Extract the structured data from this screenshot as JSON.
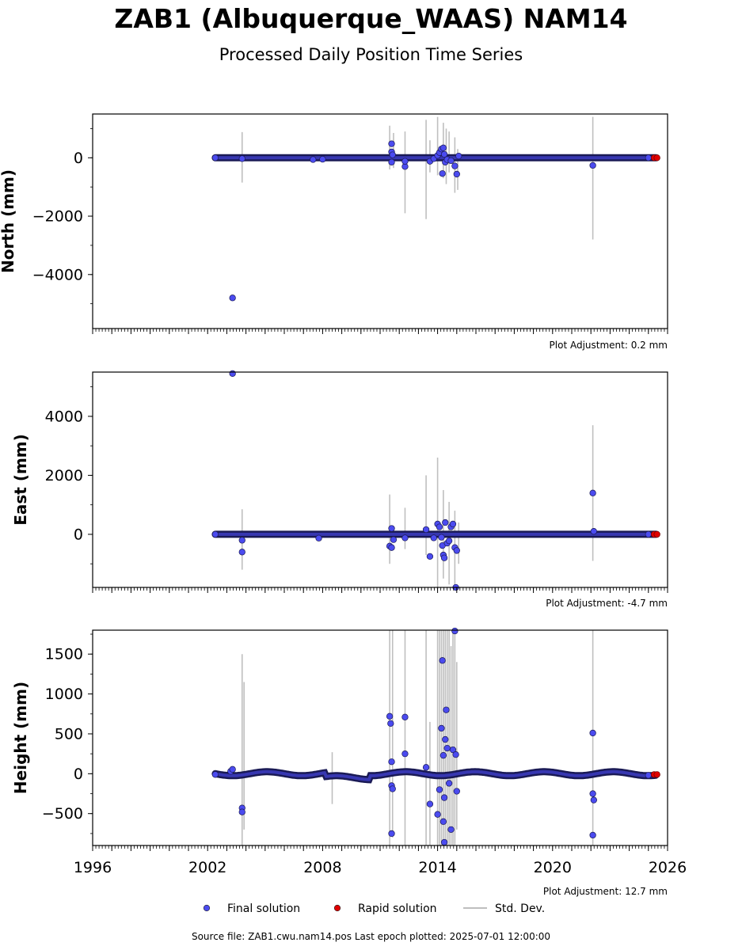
{
  "header": {
    "title": "ZAB1 (Albuquerque_WAAS) NAM14",
    "subtitle": "Processed Daily Position Time Series"
  },
  "footer": {
    "source_text": "Source file: ZAB1.cwu.nam14.pos  Last epoch plotted: 2025-07-01 12:00:00"
  },
  "colors": {
    "final": "#4b4bef",
    "final_edge": "#1a1a55",
    "rapid": "#e00000",
    "stddev": "#b4b4b4"
  },
  "chart_data": [
    {
      "type": "scatter",
      "ylabel": "North (mm)",
      "adjustment": "Plot Adjustment: 0.2 mm",
      "xlim": [
        1996,
        2026
      ],
      "ylim": [
        -5850,
        1500
      ],
      "yticks": [
        0,
        -2000,
        -4000
      ],
      "ytick_labels": [
        "0",
        "−2000",
        "−4000"
      ],
      "x_decimal_year": true,
      "band": {
        "x_start": 2002.4,
        "x_end": 2025.4,
        "y": 0
      },
      "series": [
        {
          "name": "Final solution",
          "points": [
            [
              2002.4,
              0
            ],
            [
              2003.3,
              -4800
            ],
            [
              2003.8,
              -30
            ],
            [
              2007.5,
              -60
            ],
            [
              2008.0,
              -50
            ],
            [
              2011.6,
              480
            ],
            [
              2011.6,
              200
            ],
            [
              2011.65,
              100
            ],
            [
              2011.6,
              -150
            ],
            [
              2012.3,
              -300
            ],
            [
              2012.3,
              -120
            ],
            [
              2013.6,
              -120
            ],
            [
              2013.8,
              -30
            ],
            [
              2014.0,
              80
            ],
            [
              2014.1,
              180
            ],
            [
              2014.2,
              300
            ],
            [
              2014.3,
              340
            ],
            [
              2014.35,
              120
            ],
            [
              2014.25,
              -540
            ],
            [
              2014.4,
              -150
            ],
            [
              2014.5,
              -60
            ],
            [
              2014.7,
              -100
            ],
            [
              2014.9,
              -280
            ],
            [
              2015.0,
              -560
            ],
            [
              2015.1,
              60
            ],
            [
              2022.1,
              -260
            ],
            [
              2025.0,
              0
            ]
          ]
        },
        {
          "name": "Rapid solution",
          "points": [
            [
              2025.3,
              0
            ],
            [
              2025.45,
              0
            ]
          ]
        }
      ],
      "stddev_bars": [
        [
          2003.8,
          -850,
          880
        ],
        [
          2011.5,
          -400,
          1100
        ],
        [
          2011.7,
          -350,
          850
        ],
        [
          2012.3,
          -1900,
          900
        ],
        [
          2013.4,
          -2100,
          1300
        ],
        [
          2013.6,
          -500,
          600
        ],
        [
          2014.0,
          -600,
          1400
        ],
        [
          2014.3,
          -700,
          1200
        ],
        [
          2014.45,
          -900,
          1000
        ],
        [
          2014.6,
          -500,
          900
        ],
        [
          2014.9,
          -1200,
          700
        ],
        [
          2015.05,
          -1100,
          300
        ],
        [
          2022.1,
          -2800,
          1400
        ]
      ]
    },
    {
      "type": "scatter",
      "ylabel": "East (mm)",
      "adjustment": "Plot Adjustment: -4.7 mm",
      "xlim": [
        1996,
        2026
      ],
      "ylim": [
        -1800,
        5500
      ],
      "yticks": [
        0,
        2000,
        4000
      ],
      "ytick_labels": [
        "0",
        "2000",
        "4000"
      ],
      "x_decimal_year": true,
      "band": {
        "x_start": 2002.4,
        "x_end": 2025.4,
        "y": 0
      },
      "series": [
        {
          "name": "Final solution",
          "points": [
            [
              2002.4,
              0
            ],
            [
              2003.3,
              5450
            ],
            [
              2003.8,
              -200
            ],
            [
              2003.8,
              -600
            ],
            [
              2007.8,
              -130
            ],
            [
              2011.5,
              -400
            ],
            [
              2011.6,
              -450
            ],
            [
              2011.6,
              200
            ],
            [
              2011.7,
              -180
            ],
            [
              2012.3,
              -120
            ],
            [
              2013.4,
              160
            ],
            [
              2013.6,
              -750
            ],
            [
              2013.8,
              -120
            ],
            [
              2014.0,
              350
            ],
            [
              2014.1,
              250
            ],
            [
              2014.2,
              -100
            ],
            [
              2014.25,
              -380
            ],
            [
              2014.3,
              -700
            ],
            [
              2014.35,
              -800
            ],
            [
              2014.4,
              400
            ],
            [
              2014.5,
              -300
            ],
            [
              2014.6,
              -220
            ],
            [
              2014.7,
              250
            ],
            [
              2014.8,
              350
            ],
            [
              2014.9,
              -450
            ],
            [
              2015.0,
              -550
            ],
            [
              2014.95,
              -1800
            ],
            [
              2022.1,
              1400
            ],
            [
              2022.15,
              100
            ],
            [
              2025.0,
              0
            ]
          ]
        },
        {
          "name": "Rapid solution",
          "points": [
            [
              2025.3,
              0
            ],
            [
              2025.45,
              0
            ]
          ]
        }
      ],
      "stddev_bars": [
        [
          2003.8,
          -1200,
          850
        ],
        [
          2011.5,
          -1000,
          1350
        ],
        [
          2012.3,
          -500,
          900
        ],
        [
          2013.4,
          -700,
          2000
        ],
        [
          2014.0,
          -1800,
          2600
        ],
        [
          2014.3,
          -1500,
          1500
        ],
        [
          2014.6,
          -1700,
          1100
        ],
        [
          2014.9,
          -1800,
          800
        ],
        [
          2015.1,
          -1000,
          400
        ],
        [
          2022.1,
          -900,
          3700
        ]
      ]
    },
    {
      "type": "scatter",
      "ylabel": "Height (mm)",
      "adjustment": "Plot Adjustment: 12.7 mm",
      "xlim": [
        1996,
        2026
      ],
      "ylim": [
        -900,
        1800
      ],
      "yticks": [
        1500,
        1000,
        500,
        0,
        -500
      ],
      "ytick_labels": [
        "1500",
        "1000",
        "500",
        "0",
        "−500"
      ],
      "xticks": [
        1996,
        2002,
        2008,
        2014,
        2020,
        2026
      ],
      "xtick_labels": [
        "1996",
        "2002",
        "2008",
        "2014",
        "2020",
        "2026"
      ],
      "x_decimal_year": true,
      "band": {
        "x_start": 2002.4,
        "x_end": 2025.4,
        "y": 0,
        "wavy": true
      },
      "series": [
        {
          "name": "Final solution",
          "points": [
            [
              2002.4,
              -10
            ],
            [
              2003.2,
              30
            ],
            [
              2003.3,
              55
            ],
            [
              2003.8,
              -430
            ],
            [
              2003.8,
              -480
            ],
            [
              2011.5,
              720
            ],
            [
              2011.55,
              630
            ],
            [
              2011.6,
              150
            ],
            [
              2011.6,
              -150
            ],
            [
              2011.65,
              -190
            ],
            [
              2011.6,
              -750
            ],
            [
              2012.3,
              710
            ],
            [
              2012.3,
              250
            ],
            [
              2013.4,
              80
            ],
            [
              2013.6,
              -380
            ],
            [
              2014.0,
              -510
            ],
            [
              2014.1,
              -200
            ],
            [
              2014.2,
              570
            ],
            [
              2014.25,
              1420
            ],
            [
              2014.3,
              230
            ],
            [
              2014.35,
              -300
            ],
            [
              2014.3,
              -600
            ],
            [
              2014.35,
              -860
            ],
            [
              2014.4,
              430
            ],
            [
              2014.45,
              800
            ],
            [
              2014.5,
              320
            ],
            [
              2014.6,
              -120
            ],
            [
              2014.7,
              -700
            ],
            [
              2014.8,
              300
            ],
            [
              2014.9,
              1790
            ],
            [
              2014.95,
              240
            ],
            [
              2015.0,
              -220
            ],
            [
              2022.1,
              510
            ],
            [
              2022.1,
              -250
            ],
            [
              2022.15,
              -330
            ],
            [
              2022.1,
              -770
            ],
            [
              2025.0,
              -20
            ]
          ]
        },
        {
          "name": "Rapid solution",
          "points": [
            [
              2025.3,
              -10
            ],
            [
              2025.45,
              -10
            ]
          ]
        }
      ],
      "stddev_bars": [
        [
          2003.8,
          -900,
          1500
        ],
        [
          2003.9,
          -700,
          1150
        ],
        [
          2008.5,
          -380,
          270
        ],
        [
          2011.5,
          -900,
          1800
        ],
        [
          2011.65,
          -800,
          1800
        ],
        [
          2012.3,
          -900,
          1800
        ],
        [
          2013.4,
          -900,
          1800
        ],
        [
          2013.6,
          -900,
          650
        ],
        [
          2014.0,
          -900,
          1800
        ],
        [
          2014.1,
          -900,
          1800
        ],
        [
          2014.2,
          -900,
          1800
        ],
        [
          2014.3,
          -900,
          1800
        ],
        [
          2014.4,
          -900,
          1800
        ],
        [
          2014.5,
          -900,
          1800
        ],
        [
          2014.6,
          -900,
          1800
        ],
        [
          2014.7,
          -900,
          1600
        ],
        [
          2014.8,
          -900,
          1800
        ],
        [
          2014.9,
          -900,
          1800
        ],
        [
          2015.0,
          -700,
          1400
        ],
        [
          2022.1,
          -900,
          1800
        ]
      ]
    }
  ],
  "legend": {
    "items": [
      {
        "label": "Final solution",
        "kind": "marker",
        "color": "#4b4bef"
      },
      {
        "label": "Rapid solution",
        "kind": "marker",
        "color": "#e00000"
      },
      {
        "label": "Std. Dev.",
        "kind": "line",
        "color": "#b4b4b4"
      }
    ]
  }
}
